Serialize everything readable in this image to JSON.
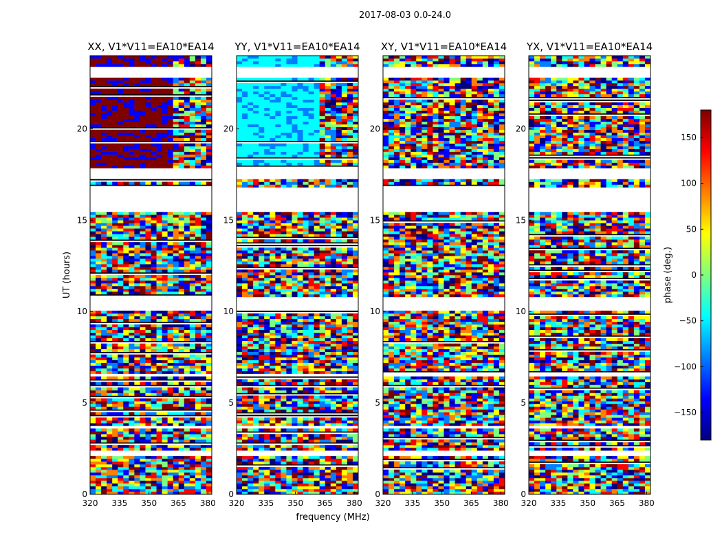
{
  "figure_title": "2017-08-03 0.0-24.0",
  "colors": {
    "jet": [
      "#00007f",
      "#0000ff",
      "#007fff",
      "#00ffff",
      "#7fff7f",
      "#ffff00",
      "#ff7f00",
      "#ff0000",
      "#7f0000"
    ],
    "flag_row": "#ffffff",
    "dense_row": "#000000"
  },
  "chart_data": {
    "type": "heatmap",
    "panels": [
      {
        "id": "xx",
        "title": "XX, V1*V11=EA10*EA14",
        "phase_character": "strong negative/positive wraps before 360 MHz, fringes above"
      },
      {
        "id": "yy",
        "title": "YY, V1*V11=EA10*EA14",
        "phase_character": "uniform cyan (~-60 deg) before 360 MHz, fringes above"
      },
      {
        "id": "xy",
        "title": "XY, V1*V11=EA10*EA14",
        "phase_character": "noise-like across full band"
      },
      {
        "id": "yx",
        "title": "YX, V1*V11=EA10*EA14",
        "phase_character": "noise-like across full band"
      }
    ],
    "xlabel": "frequency (MHz)",
    "ylabel": "UT (hours)",
    "xlim": [
      320,
      382
    ],
    "ylim": [
      0,
      24
    ],
    "xticks": [
      320,
      335,
      350,
      365,
      380
    ],
    "yticks": [
      0,
      5,
      10,
      15,
      20
    ],
    "colorbar": {
      "label": "phase (deg.)",
      "range": [
        -180,
        180
      ],
      "ticks": [
        -150,
        -100,
        -50,
        0,
        50,
        100,
        150
      ],
      "colormap": "jet"
    },
    "flagged_ut_ranges": [
      [
        2.0,
        2.3
      ],
      [
        3.5,
        3.6
      ],
      [
        6.4,
        6.55
      ],
      [
        10.0,
        10.7
      ],
      [
        15.4,
        16.7
      ],
      [
        17.2,
        17.7
      ],
      [
        22.8,
        23.3
      ]
    ]
  }
}
